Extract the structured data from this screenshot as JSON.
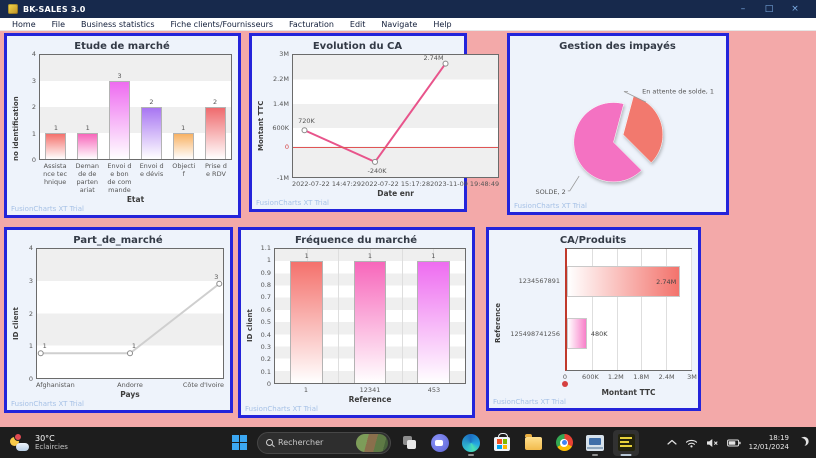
{
  "window": {
    "title": "BK-SALES 3.0",
    "controls": {
      "minimize": "–",
      "maximize": "□",
      "close": "×"
    }
  },
  "menu_bar": {
    "items": [
      "Home",
      "File",
      "Business statistics",
      "Fiche clients/Fournisseurs",
      "Facturation",
      "Edit",
      "Navigate",
      "Help"
    ]
  },
  "watermark": "FusionCharts XT Trial",
  "colors": {
    "background": "#f3a9a9",
    "panel_border": "#2424da",
    "panel_bg": "#eef3fb",
    "titlebar_bg": "#17294c",
    "taskbar_bg": "#1d1d1d",
    "zero_line": "#e05555"
  },
  "chart_data": [
    {
      "type": "bar",
      "title": "Etude de marché",
      "xlabel": "Etat",
      "ylabel": "no identification",
      "categories": [
        "Assistance technique",
        "Demande de partenariat",
        "Envoi de bon de commande",
        "Envoi de dévis",
        "Objectif",
        "Prise de RDV"
      ],
      "values": [
        1,
        1,
        3,
        2,
        1,
        2
      ],
      "bar_colors": [
        "#f4716c",
        "#f767bb",
        "#ee6cf0",
        "#a876f2",
        "#f8b264",
        "#ef6b6e"
      ],
      "ylim": [
        0,
        4
      ],
      "yticks": [
        0,
        1,
        2,
        3,
        4
      ],
      "grid": "bands",
      "legend": "none"
    },
    {
      "type": "line",
      "title": "Evolution du CA",
      "xlabel": "Date enr",
      "ylabel": "Montant TTC",
      "categories": [
        "2022-07-22 14:47:29",
        "2022-07-22 15:17:28",
        "2023-11-09 19:48:49"
      ],
      "values": [
        720000,
        -240000,
        2740000
      ],
      "point_labels": [
        "720K",
        "-240K",
        "2.74M"
      ],
      "line_color": "#e8548b",
      "ylim": [
        -1000000,
        3000000
      ],
      "yticks": [
        [
          3000000,
          "3M"
        ],
        [
          2200000,
          "2.2M"
        ],
        [
          1400000,
          "1.4M"
        ],
        [
          600000,
          "600K"
        ],
        [
          0,
          "0"
        ],
        [
          -1000000,
          "-1M"
        ]
      ],
      "zero_line": true,
      "legend": "none"
    },
    {
      "type": "pie",
      "title": "Gestion des impayés",
      "slices": [
        {
          "label": "En attente de solde, 1",
          "value": 1,
          "color": "#f2796e",
          "exploded": true
        },
        {
          "label": "SOLDE, 2",
          "value": 2,
          "color": "#f472c2",
          "exploded": false
        }
      ],
      "legend": "none"
    },
    {
      "type": "line",
      "title": "Part_de_marché",
      "xlabel": "Pays",
      "ylabel": "ID client",
      "categories": [
        "Afghanistan",
        "Andorre",
        "Côte d'Ivoire"
      ],
      "values": [
        1,
        1,
        3
      ],
      "point_labels": [
        "1",
        "1",
        "3"
      ],
      "line_color": "#cfcfcf",
      "ylim": [
        0,
        4
      ],
      "yticks": [
        [
          4,
          "4"
        ],
        [
          3,
          "3"
        ],
        [
          2,
          "2"
        ],
        [
          1,
          "1"
        ],
        [
          0,
          "0"
        ]
      ],
      "legend": "none"
    },
    {
      "type": "bar",
      "title": "Fréquence du marché",
      "xlabel": "Reference",
      "ylabel": "ID client",
      "categories": [
        "1",
        "12341",
        "453"
      ],
      "values": [
        1,
        1,
        1
      ],
      "bar_colors": [
        "#f4716c",
        "#f767bb",
        "#ee6cf0"
      ],
      "ylim": [
        0,
        1.1
      ],
      "yticks": [
        [
          1.1,
          "1.1"
        ],
        [
          1,
          "1"
        ],
        [
          0.9,
          "0.9"
        ],
        [
          0.8,
          "0.8"
        ],
        [
          0.7,
          "0.7"
        ],
        [
          0.6,
          "0.6"
        ],
        [
          0.5,
          "0.5"
        ],
        [
          0.4,
          "0.4"
        ],
        [
          0.3,
          "0.3"
        ],
        [
          0.2,
          "0.2"
        ],
        [
          0.1,
          "0.1"
        ],
        [
          0,
          "0"
        ]
      ],
      "vgrid": true,
      "legend": "none"
    },
    {
      "type": "hbar",
      "title": "CA/Produits",
      "xlabel": "Montant TTC",
      "ylabel": "Reference",
      "categories": [
        "1234567891",
        "125498741256"
      ],
      "values": [
        2740000,
        480000
      ],
      "value_labels": [
        "2.74M",
        "480K"
      ],
      "bar_colors": [
        "#f3736c",
        "#f87fc9"
      ],
      "xlim": [
        0,
        3000000
      ],
      "xticks": [
        [
          0,
          "0"
        ],
        [
          600000,
          "600K"
        ],
        [
          1200000,
          "1.2M"
        ],
        [
          1800000,
          "1.8M"
        ],
        [
          2400000,
          "2.4M"
        ],
        [
          3000000,
          "3M"
        ]
      ],
      "legend": "none"
    }
  ],
  "taskbar": {
    "weather": {
      "temp": "30°C",
      "condition": "Eclaircies"
    },
    "search": {
      "placeholder": "Rechercher"
    },
    "clock": {
      "time": "18:19",
      "date": "12/01/2024"
    }
  }
}
